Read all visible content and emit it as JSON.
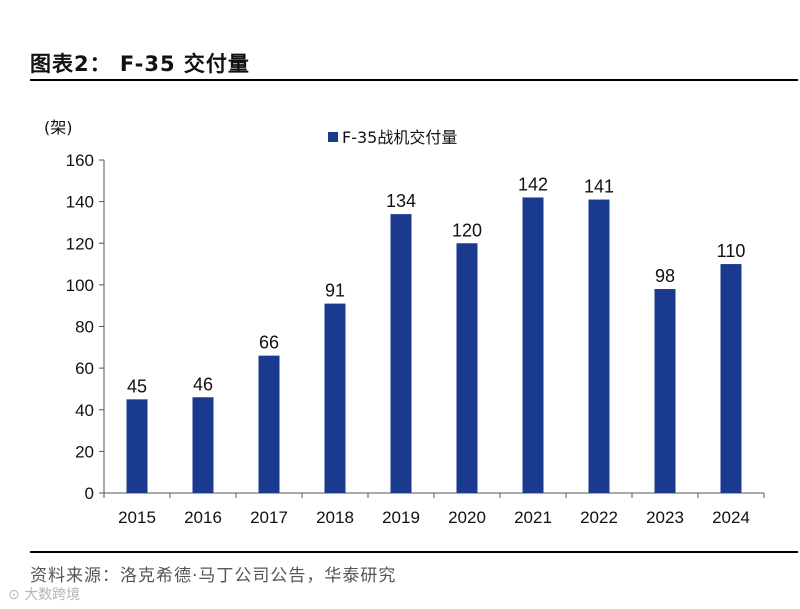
{
  "figure": {
    "title": "图表2： F-35 交付量",
    "source": "资料来源：洛克希德·马丁公司公告，华泰研究",
    "watermark": "大数跨境"
  },
  "colors": {
    "bar": "#1a3a8f",
    "axis": "#555555",
    "text": "#111111"
  },
  "chart_data": {
    "type": "bar",
    "title": "",
    "unit_label": "(架)",
    "categories": [
      "2015",
      "2016",
      "2017",
      "2018",
      "2019",
      "2020",
      "2021",
      "2022",
      "2023",
      "2024"
    ],
    "series": [
      {
        "name": "F-35战机交付量",
        "values": [
          45,
          46,
          66,
          91,
          134,
          120,
          142,
          141,
          98,
          110
        ]
      }
    ],
    "ylim": [
      0,
      160
    ],
    "yticks": [
      0,
      20,
      40,
      60,
      80,
      100,
      120,
      140,
      160
    ],
    "xlabel": "",
    "ylabel": "(架)",
    "grid": false,
    "legend_position": "top-center",
    "data_labels": true
  }
}
